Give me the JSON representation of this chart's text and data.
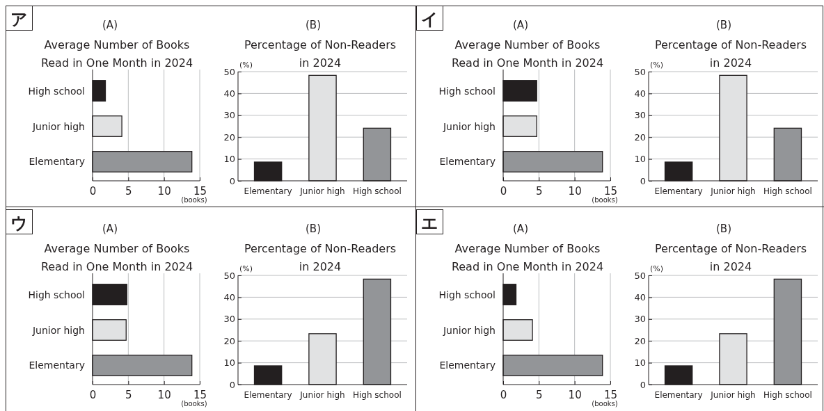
{
  "chart_data": [
    {
      "type": "bar",
      "orientation": "horizontal",
      "subtitle": "(A)",
      "title": "Average Number of Books\nRead in One Month in 2024",
      "annotations": [
        "ア"
      ],
      "xlabel": "(books)",
      "categories": [
        "High school",
        "Junior high",
        "Elementary"
      ],
      "values": [
        1.8,
        4.1,
        13.9
      ],
      "colors": [
        "#231f20",
        "#e1e2e3",
        "#939598"
      ],
      "xlim": [
        0,
        15
      ],
      "xticks": [
        0,
        5,
        10,
        15
      ],
      "grid": "x"
    },
    {
      "type": "bar",
      "subtitle": "(B)",
      "title": "Percentage of Non-Readers\nin 2024",
      "ylabel": "(%)",
      "categories": [
        "Elementary",
        "Junior high",
        "High school"
      ],
      "values": [
        8.6,
        48.3,
        24.1
      ],
      "colors": [
        "#231f20",
        "#e1e2e3",
        "#939598"
      ],
      "ylim": [
        0,
        50
      ],
      "yticks": [
        0,
        10,
        20,
        30,
        40,
        50
      ],
      "grid": "y"
    },
    {
      "type": "bar",
      "orientation": "horizontal",
      "subtitle": "(A)",
      "title": "Average Number of Books\nRead in One Month in 2024",
      "annotations": [
        "イ"
      ],
      "xlabel": "(books)",
      "categories": [
        "High school",
        "Junior high",
        "Elementary"
      ],
      "values": [
        4.7,
        4.7,
        13.9
      ],
      "colors": [
        "#231f20",
        "#e1e2e3",
        "#939598"
      ],
      "xlim": [
        0,
        15
      ],
      "xticks": [
        0,
        5,
        10,
        15
      ],
      "grid": "x"
    },
    {
      "type": "bar",
      "subtitle": "(B)",
      "title": "Percentage of Non-Readers\nin 2024",
      "ylabel": "(%)",
      "categories": [
        "Elementary",
        "Junior high",
        "High school"
      ],
      "values": [
        8.6,
        48.3,
        24.1
      ],
      "colors": [
        "#231f20",
        "#e1e2e3",
        "#939598"
      ],
      "ylim": [
        0,
        50
      ],
      "yticks": [
        0,
        10,
        20,
        30,
        40,
        50
      ],
      "grid": "y"
    },
    {
      "type": "bar",
      "orientation": "horizontal",
      "subtitle": "(A)",
      "title": "Average Number of Books\nRead in One Month in 2024",
      "annotations": [
        "ウ"
      ],
      "xlabel": "(books)",
      "categories": [
        "High school",
        "Junior high",
        "Elementary"
      ],
      "values": [
        4.8,
        4.7,
        13.9
      ],
      "colors": [
        "#231f20",
        "#e1e2e3",
        "#939598"
      ],
      "xlim": [
        0,
        15
      ],
      "xticks": [
        0,
        5,
        10,
        15
      ],
      "grid": "x"
    },
    {
      "type": "bar",
      "subtitle": "(B)",
      "title": "Percentage of Non-Readers\nin 2024",
      "ylabel": "(%)",
      "categories": [
        "Elementary",
        "Junior high",
        "High school"
      ],
      "values": [
        8.6,
        23.3,
        48.3
      ],
      "colors": [
        "#231f20",
        "#e1e2e3",
        "#939598"
      ],
      "ylim": [
        0,
        50
      ],
      "yticks": [
        0,
        10,
        20,
        30,
        40,
        50
      ],
      "grid": "y"
    },
    {
      "type": "bar",
      "orientation": "horizontal",
      "subtitle": "(A)",
      "title": "Average Number of Books\nRead in One Month in 2024",
      "annotations": [
        "エ"
      ],
      "xlabel": "(books)",
      "categories": [
        "High school",
        "Junior high",
        "Elementary"
      ],
      "values": [
        1.8,
        4.1,
        13.9
      ],
      "colors": [
        "#231f20",
        "#e1e2e3",
        "#939598"
      ],
      "xlim": [
        0,
        15
      ],
      "xticks": [
        0,
        5,
        10,
        15
      ],
      "grid": "x"
    },
    {
      "type": "bar",
      "subtitle": "(B)",
      "title": "Percentage of Non-Readers\nin 2024",
      "ylabel": "(%)",
      "categories": [
        "Elementary",
        "Junior high",
        "High school"
      ],
      "values": [
        8.6,
        23.3,
        48.3
      ],
      "colors": [
        "#231f20",
        "#e1e2e3",
        "#939598"
      ],
      "ylim": [
        0,
        50
      ],
      "yticks": [
        0,
        10,
        20,
        30,
        40,
        50
      ],
      "grid": "y"
    }
  ]
}
